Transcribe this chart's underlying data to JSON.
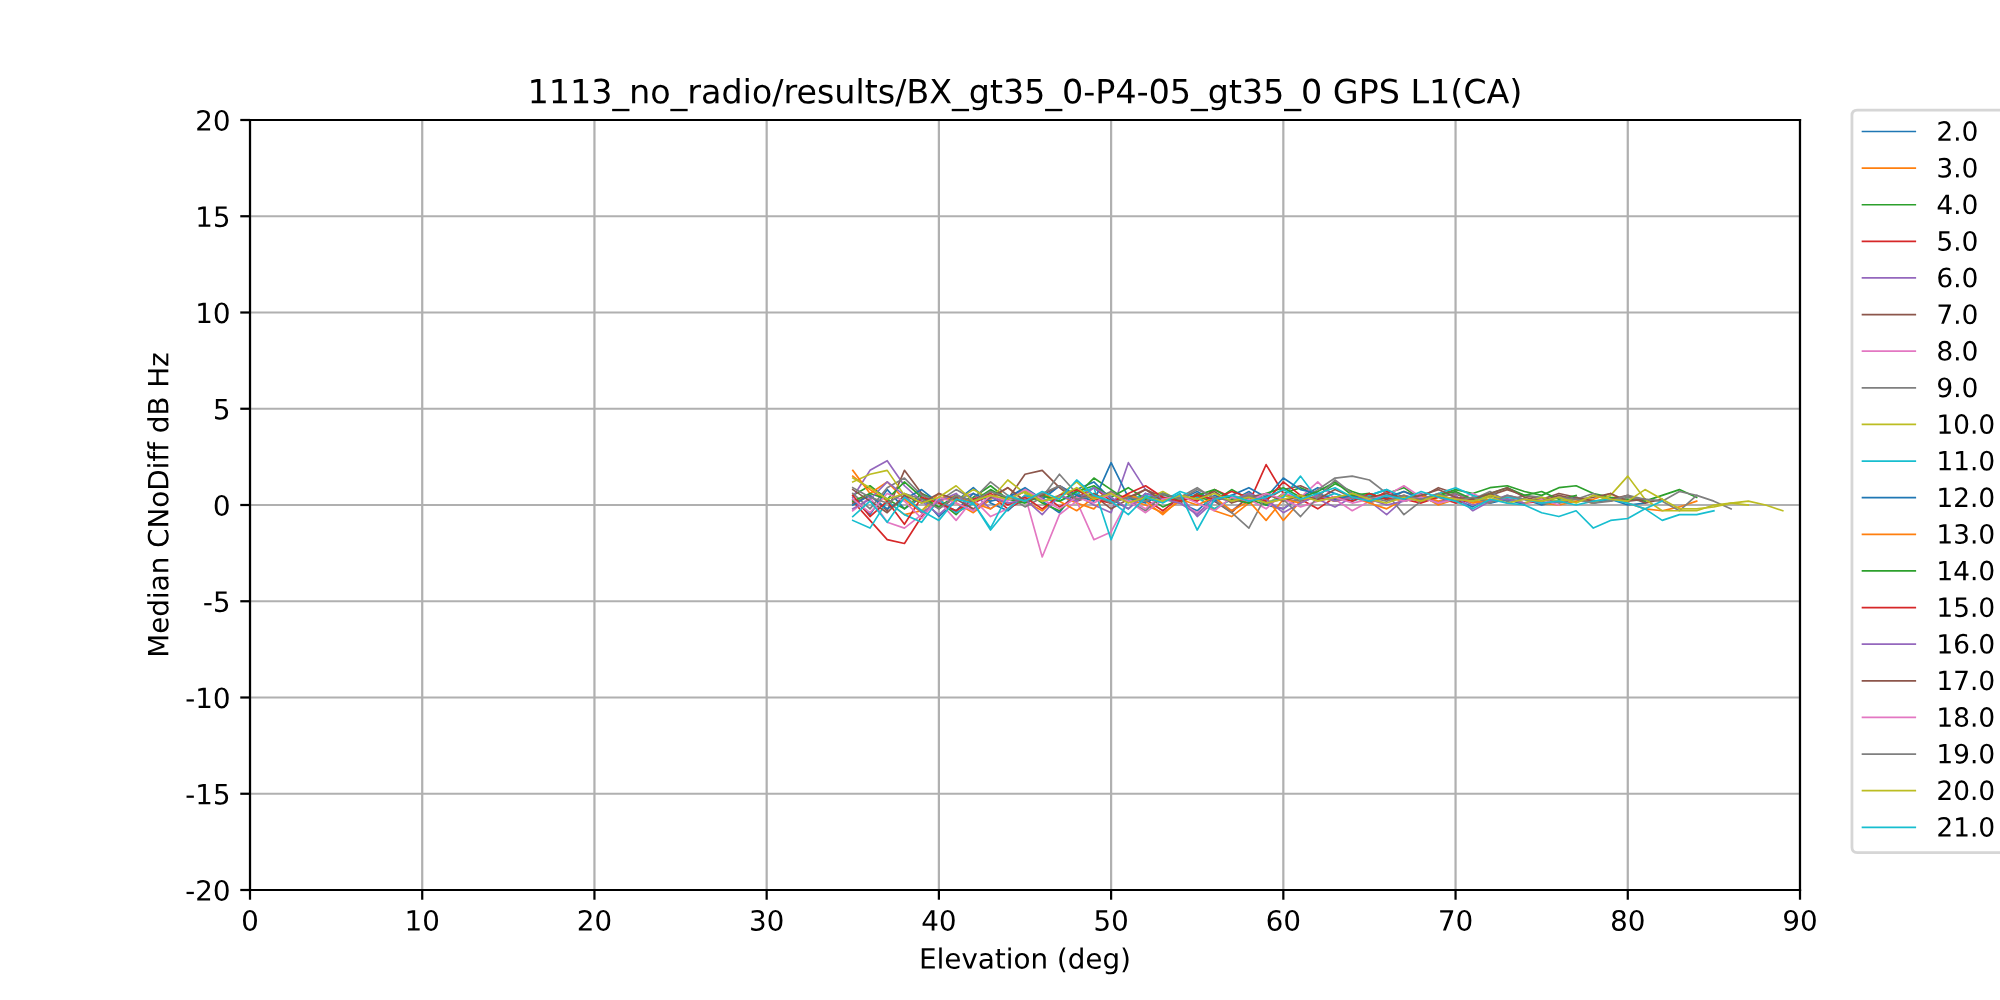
{
  "chart_data": {
    "type": "line",
    "title": "1113_no_radio/results/BX_gt35_0-P4-05_gt35_0 GPS L1(CA)",
    "xlabel": "Elevation (deg)",
    "ylabel": "Median CNoDiff dB Hz",
    "xlim": [
      0,
      90
    ],
    "xticks": [
      0,
      10,
      20,
      30,
      40,
      50,
      60,
      70,
      80,
      90
    ],
    "ylim": [
      -20,
      20
    ],
    "yticks": [
      -20,
      -15,
      -10,
      -5,
      0,
      5,
      10,
      15,
      20
    ],
    "grid": true,
    "legend": "right",
    "x": [
      35,
      36,
      37,
      38,
      39,
      40,
      41,
      42,
      43,
      44,
      45,
      46,
      47,
      48,
      49,
      50,
      51,
      52,
      53,
      54,
      55,
      56,
      57,
      58,
      59,
      60,
      61,
      62,
      63,
      64,
      65,
      66,
      67,
      68,
      69,
      70,
      71,
      72,
      73,
      74,
      75,
      76,
      77,
      78,
      79,
      80,
      81,
      82,
      83,
      84,
      85,
      86,
      87,
      88,
      89
    ],
    "series": [
      {
        "name": "2.0",
        "color": "#1f77b4",
        "values": [
          0.3,
          -0.5,
          0.8,
          -0.2,
          0.4,
          -0.6,
          0.2,
          0.9,
          0.1,
          -0.3,
          0.5,
          0.2,
          -0.4,
          0.8,
          1.2,
          0.3,
          -0.2,
          0.6,
          0.4,
          0.1,
          -0.3,
          0.5,
          0.2,
          0.7,
          0.0,
          -0.2,
          0.4,
          0.9,
          0.6,
          0.3,
          0.5,
          0.8,
          0.2,
          0.4,
          0.1,
          0.3,
          -0.1,
          0.5,
          0.2,
          0.3,
          0.0,
          0.2,
          0.4,
          0.1,
          0.3,
          0.0,
          0.1,
          null,
          null,
          null,
          null,
          null,
          null,
          null,
          null
        ]
      },
      {
        "name": "3.0",
        "color": "#ff7f0e",
        "values": [
          1.5,
          0.8,
          0.2,
          -0.5,
          -0.3,
          0.6,
          0.1,
          -0.4,
          0.3,
          0.9,
          0.2,
          -0.3,
          0.5,
          0.1,
          -0.2,
          0.7,
          0.3,
          0.0,
          -0.4,
          0.2,
          0.5,
          -0.3,
          -0.6,
          0.1,
          0.4,
          -0.8,
          0.2,
          0.5,
          0.3,
          0.6,
          0.1,
          0.4,
          0.2,
          0.5,
          0.0,
          0.3,
          0.2,
          0.1,
          0.4,
          0.3,
          0.1,
          0.0,
          0.2,
          0.3,
          0.6,
          0.1,
          -0.2,
          -0.3,
          -0.1,
          0.2,
          null,
          null,
          null,
          null,
          null
        ]
      },
      {
        "name": "4.0",
        "color": "#2ca02c",
        "values": [
          0.5,
          1.0,
          0.3,
          -0.2,
          0.6,
          0.2,
          -0.5,
          0.4,
          1.0,
          0.3,
          0.7,
          0.1,
          -0.3,
          0.5,
          1.4,
          0.8,
          0.2,
          0.5,
          -0.1,
          0.3,
          0.4,
          0.2,
          0.8,
          0.3,
          0.0,
          0.6,
          0.9,
          0.5,
          1.1,
          0.7,
          0.4,
          0.6,
          0.9,
          0.3,
          0.5,
          0.8,
          0.6,
          0.9,
          1.0,
          0.7,
          0.5,
          0.9,
          1.0,
          0.6,
          0.4,
          0.3,
          0.2,
          0.5,
          0.8,
          0.4,
          null,
          null,
          null,
          null,
          null
        ]
      },
      {
        "name": "5.0",
        "color": "#d62728",
        "values": [
          0.2,
          -0.8,
          -1.8,
          -2.0,
          -0.6,
          0.3,
          -0.4,
          0.1,
          0.5,
          -0.2,
          0.3,
          0.6,
          -0.1,
          0.4,
          0.9,
          0.2,
          0.5,
          0.3,
          -0.3,
          0.4,
          0.2,
          0.8,
          0.4,
          0.1,
          2.1,
          0.6,
          0.3,
          -0.2,
          0.4,
          0.5,
          0.2,
          0.7,
          0.3,
          0.1,
          0.4,
          0.6,
          0.2,
          0.5,
          0.3,
          0.1,
          0.2,
          0.4,
          0.3,
          0.1,
          null,
          null,
          null,
          null,
          null,
          null,
          null,
          null,
          null,
          null,
          null
        ]
      },
      {
        "name": "6.0",
        "color": "#9467bd",
        "values": [
          0.4,
          1.8,
          2.3,
          1.0,
          0.2,
          -0.5,
          0.3,
          0.6,
          -0.2,
          0.4,
          0.8,
          0.3,
          1.0,
          0.5,
          0.0,
          -0.4,
          2.2,
          0.8,
          0.3,
          0.5,
          -0.6,
          0.2,
          -0.3,
          0.4,
          0.1,
          -0.2,
          0.5,
          0.3,
          -0.1,
          0.4,
          0.2,
          -0.5,
          0.3,
          0.6,
          0.1,
          0.4,
          0.0,
          0.2,
          0.5,
          0.3,
          0.1,
          0.2,
          null,
          null,
          null,
          null,
          null,
          null,
          null,
          null,
          null,
          null,
          null,
          null,
          null
        ]
      },
      {
        "name": "7.0",
        "color": "#8c564b",
        "values": [
          0.1,
          0.5,
          -0.3,
          1.8,
          0.6,
          -0.2,
          0.4,
          0.1,
          0.7,
          0.3,
          1.6,
          1.8,
          0.9,
          0.2,
          0.5,
          -0.2,
          0.3,
          0.8,
          0.4,
          0.1,
          0.6,
          0.2,
          -0.4,
          0.5,
          0.3,
          0.8,
          1.0,
          0.6,
          0.2,
          0.4,
          0.5,
          0.3,
          0.7,
          0.4,
          0.9,
          0.6,
          0.2,
          0.5,
          0.8,
          0.5,
          0.3,
          0.6,
          0.4,
          0.2,
          0.3,
          0.5,
          0.1,
          0.3,
          null,
          null,
          null,
          null,
          null,
          null,
          null
        ]
      },
      {
        "name": "8.0",
        "color": "#e377c2",
        "values": [
          -0.3,
          0.4,
          -0.9,
          -1.2,
          -0.5,
          0.2,
          -0.8,
          0.3,
          -0.6,
          -0.2,
          0.5,
          -2.7,
          -0.5,
          0.2,
          -1.8,
          -1.4,
          0.3,
          -0.2,
          0.6,
          0.1,
          -0.4,
          0.2,
          0.5,
          0.3,
          -0.2,
          0.6,
          0.4,
          1.2,
          0.3,
          -0.3,
          0.2,
          0.5,
          1.0,
          0.4,
          0.1,
          0.3,
          0.6,
          0.2,
          0.4,
          0.1,
          0.3,
          0.0,
          null,
          null,
          null,
          null,
          null,
          null,
          null,
          null,
          null,
          null,
          null,
          null,
          null
        ]
      },
      {
        "name": "9.0",
        "color": "#7f7f7f",
        "values": [
          0.6,
          -0.2,
          0.9,
          1.4,
          0.5,
          0.2,
          0.8,
          0.3,
          1.2,
          0.5,
          -0.1,
          0.4,
          1.6,
          0.6,
          0.3,
          0.7,
          0.2,
          -0.3,
          0.5,
          0.4,
          0.9,
          0.3,
          -0.4,
          -1.2,
          0.5,
          0.3,
          0.2,
          0.8,
          1.4,
          1.5,
          1.3,
          0.6,
          -0.5,
          0.2,
          0.4,
          0.6,
          0.3,
          0.7,
          0.2,
          0.5,
          0.4,
          0.1,
          0.3,
          0.6,
          0.2,
          0.4,
          0.3,
          0.2,
          -0.3,
          0.5,
          0.2,
          -0.2,
          null,
          null,
          null
        ]
      },
      {
        "name": "10.0",
        "color": "#bcbd22",
        "values": [
          1.2,
          1.6,
          1.8,
          0.5,
          -0.3,
          0.4,
          0.2,
          0.8,
          0.3,
          1.3,
          0.6,
          0.2,
          0.5,
          1.2,
          0.4,
          0.1,
          0.5,
          0.3,
          0.7,
          0.2,
          0.4,
          -0.2,
          0.3,
          0.6,
          0.1,
          0.5,
          0.3,
          0.4,
          0.2,
          0.6,
          0.3,
          0.5,
          0.2,
          0.4,
          0.1,
          0.3,
          0.2,
          0.5,
          0.3,
          0.1,
          0.4,
          0.2,
          0.3,
          0.1,
          0.5,
          1.5,
          0.3,
          -0.3,
          -0.3,
          -0.3,
          0.0,
          0.1,
          0.2,
          0.0,
          -0.3
        ]
      },
      {
        "name": "11.0",
        "color": "#17becf",
        "values": [
          -0.8,
          -1.2,
          0.2,
          -0.5,
          -0.9,
          0.3,
          -0.4,
          0.1,
          -1.3,
          -0.2,
          0.5,
          0.3,
          0.2,
          0.6,
          0.9,
          -1.8,
          0.3,
          0.5,
          0.2,
          0.7,
          0.4,
          -0.2,
          0.3,
          0.5,
          0.1,
          0.4,
          1.5,
          0.3,
          0.6,
          0.2,
          0.5,
          0.8,
          0.4,
          0.3,
          0.6,
          0.9,
          0.5,
          0.2,
          0.4,
          0.3,
          0.1,
          0.2,
          0.0,
          0.2,
          0.3,
          0.1,
          -0.2,
          -0.8,
          -0.5,
          -0.5,
          -0.3,
          null,
          null,
          null,
          null
        ]
      },
      {
        "name": "12.0",
        "color": "#1f77b4",
        "values": [
          0.0,
          0.5,
          -0.2,
          0.3,
          0.8,
          0.1,
          -0.3,
          0.6,
          0.2,
          0.4,
          0.9,
          0.3,
          1.0,
          0.5,
          0.2,
          2.2,
          0.4,
          0.1,
          0.6,
          0.3,
          0.7,
          0.2,
          0.5,
          0.9,
          0.4,
          1.4,
          0.8,
          0.6,
          0.3,
          0.5,
          0.2,
          0.4,
          0.7,
          0.3,
          0.5,
          0.2,
          0.4,
          0.1,
          0.3,
          0.0,
          null,
          null,
          null,
          null,
          null,
          null,
          null,
          null,
          null,
          null,
          null,
          null,
          null,
          null,
          null
        ]
      },
      {
        "name": "13.0",
        "color": "#ff7f0e",
        "values": [
          1.8,
          0.6,
          1.2,
          0.3,
          -0.4,
          0.2,
          0.5,
          0.1,
          -0.2,
          0.4,
          0.3,
          0.6,
          0.2,
          -0.3,
          0.4,
          0.1,
          0.5,
          0.2,
          -0.5,
          0.3,
          0.0,
          0.4,
          -0.3,
          0.2,
          -0.8,
          0.3,
          0.1,
          0.5,
          0.2,
          0.4,
          0.1,
          -0.2,
          0.3,
          0.5,
          0.2,
          0.4,
          0.1,
          0.3,
          null,
          null,
          null,
          null,
          null,
          null,
          null,
          null,
          null,
          null,
          null,
          null,
          null,
          null,
          null,
          null,
          null
        ]
      },
      {
        "name": "14.0",
        "color": "#2ca02c",
        "values": [
          0.2,
          0.6,
          0.3,
          1.2,
          0.4,
          -0.1,
          0.5,
          0.2,
          0.8,
          0.3,
          0.1,
          0.5,
          0.2,
          0.7,
          1.0,
          0.4,
          0.9,
          0.3,
          0.6,
          0.2,
          0.5,
          0.8,
          0.3,
          0.1,
          0.6,
          0.9,
          0.4,
          0.7,
          1.2,
          0.5,
          0.6,
          0.3,
          0.4,
          0.2,
          0.5,
          0.7,
          0.3,
          0.6,
          0.9,
          0.5,
          0.7,
          0.3,
          0.5,
          null,
          null,
          null,
          null,
          null,
          null,
          null,
          null,
          null,
          null,
          null,
          null
        ]
      },
      {
        "name": "15.0",
        "color": "#d62728",
        "values": [
          0.5,
          -0.6,
          0.2,
          -1.0,
          0.4,
          0.1,
          -0.3,
          0.3,
          0.6,
          0.0,
          0.4,
          -0.2,
          0.5,
          0.8,
          0.3,
          0.1,
          0.6,
          1.0,
          0.4,
          0.2,
          0.5,
          0.3,
          0.7,
          0.4,
          0.2,
          1.2,
          0.5,
          0.3,
          0.4,
          0.2,
          0.6,
          0.3,
          0.5,
          0.2,
          0.4,
          0.1,
          0.3,
          null,
          null,
          null,
          null,
          null,
          null,
          null,
          null,
          null,
          null,
          null,
          null,
          null,
          null,
          null,
          null,
          null,
          null
        ]
      },
      {
        "name": "16.0",
        "color": "#9467bd",
        "values": [
          -0.2,
          0.3,
          1.2,
          0.5,
          -0.4,
          0.2,
          0.6,
          -0.3,
          0.4,
          0.1,
          0.3,
          -0.5,
          0.5,
          0.2,
          0.9,
          0.4,
          -0.2,
          0.6,
          0.3,
          0.1,
          -0.5,
          0.4,
          0.2,
          0.6,
          0.3,
          -0.4,
          0.1,
          0.5,
          0.2,
          0.4,
          0.3,
          0.0,
          0.2,
          0.4,
          0.1,
          0.5,
          -0.3,
          0.2,
          0.3,
          0.1,
          null,
          null,
          null,
          null,
          null,
          null,
          null,
          null,
          null,
          null,
          null,
          null,
          null,
          null,
          null
        ]
      },
      {
        "name": "17.0",
        "color": "#8c564b",
        "values": [
          0.8,
          0.2,
          -0.4,
          0.5,
          0.1,
          0.6,
          0.3,
          -0.2,
          0.4,
          0.9,
          0.2,
          0.5,
          1.0,
          0.3,
          0.6,
          0.1,
          0.4,
          0.8,
          0.2,
          0.5,
          0.3,
          0.7,
          0.1,
          0.4,
          0.6,
          0.2,
          0.5,
          0.3,
          0.8,
          0.4,
          0.2,
          0.6,
          0.3,
          0.5,
          0.8,
          0.4,
          0.3,
          0.6,
          0.9,
          0.4,
          0.2,
          0.5,
          0.3,
          0.4,
          0.6,
          0.2,
          0.3,
          null,
          null,
          null,
          null,
          null,
          null,
          null,
          null
        ]
      },
      {
        "name": "18.0",
        "color": "#e377c2",
        "values": [
          0.3,
          -0.4,
          0.6,
          0.2,
          -0.7,
          0.4,
          0.1,
          -0.3,
          0.5,
          0.2,
          0.8,
          0.3,
          -0.2,
          0.4,
          0.1,
          0.6,
          0.2,
          -0.4,
          0.3,
          0.5,
          0.1,
          -0.3,
          0.4,
          0.2,
          0.6,
          0.3,
          -0.1,
          0.2,
          0.4,
          0.1,
          0.3,
          0.5,
          0.2,
          0.4,
          0.1,
          0.3,
          0.2,
          null,
          null,
          null,
          null,
          null,
          null,
          null,
          null,
          null,
          null,
          null,
          null,
          null,
          null,
          null,
          null,
          null,
          null
        ]
      },
      {
        "name": "19.0",
        "color": "#7f7f7f",
        "values": [
          0.9,
          0.4,
          0.1,
          0.6,
          0.3,
          -0.2,
          0.5,
          0.2,
          0.7,
          0.4,
          0.2,
          0.6,
          1.0,
          0.3,
          0.5,
          0.1,
          0.4,
          0.2,
          0.6,
          0.3,
          0.8,
          0.4,
          0.2,
          0.5,
          0.1,
          0.3,
          -0.6,
          0.4,
          1.3,
          0.6,
          0.4,
          0.2,
          0.5,
          0.3,
          0.6,
          0.2,
          0.4,
          0.1,
          0.5,
          0.3,
          0.2,
          0.4,
          0.3,
          0.1,
          0.2,
          0.5,
          0.3,
          0.2,
          0.7,
          0.5,
          null,
          null,
          null,
          null,
          null
        ]
      },
      {
        "name": "20.0",
        "color": "#bcbd22",
        "values": [
          1.4,
          0.9,
          0.3,
          0.6,
          0.1,
          0.4,
          1.0,
          0.2,
          0.5,
          0.3,
          0.7,
          0.2,
          0.4,
          0.9,
          0.3,
          0.6,
          0.1,
          0.4,
          0.2,
          0.5,
          0.3,
          0.6,
          0.2,
          0.4,
          0.1,
          0.3,
          0.5,
          0.2,
          0.4,
          0.6,
          0.3,
          0.1,
          0.4,
          0.2,
          0.5,
          0.3,
          0.2,
          0.4,
          0.1,
          0.3,
          0.2,
          0.4,
          0.1,
          0.5,
          0.3,
          0.2,
          0.8,
          0.3,
          -0.2,
          -0.2,
          -0.1,
          0.1,
          0.0,
          null,
          null
        ]
      },
      {
        "name": "21.0",
        "color": "#17becf",
        "values": [
          -0.6,
          0.2,
          -0.9,
          0.4,
          -0.3,
          -0.8,
          0.3,
          0.1,
          -1.2,
          0.5,
          0.2,
          0.7,
          0.3,
          1.3,
          0.5,
          0.2,
          -0.5,
          0.4,
          0.1,
          0.6,
          -1.3,
          0.3,
          0.5,
          0.2,
          0.4,
          0.8,
          0.3,
          0.6,
          0.9,
          0.4,
          0.2,
          0.5,
          0.3,
          0.7,
          0.4,
          0.2,
          -0.2,
          0.3,
          0.1,
          0.0,
          -0.4,
          -0.6,
          -0.3,
          -1.2,
          -0.8,
          -0.7,
          -0.2,
          0.2,
          null,
          null,
          null,
          null,
          null,
          null,
          null
        ]
      }
    ]
  }
}
